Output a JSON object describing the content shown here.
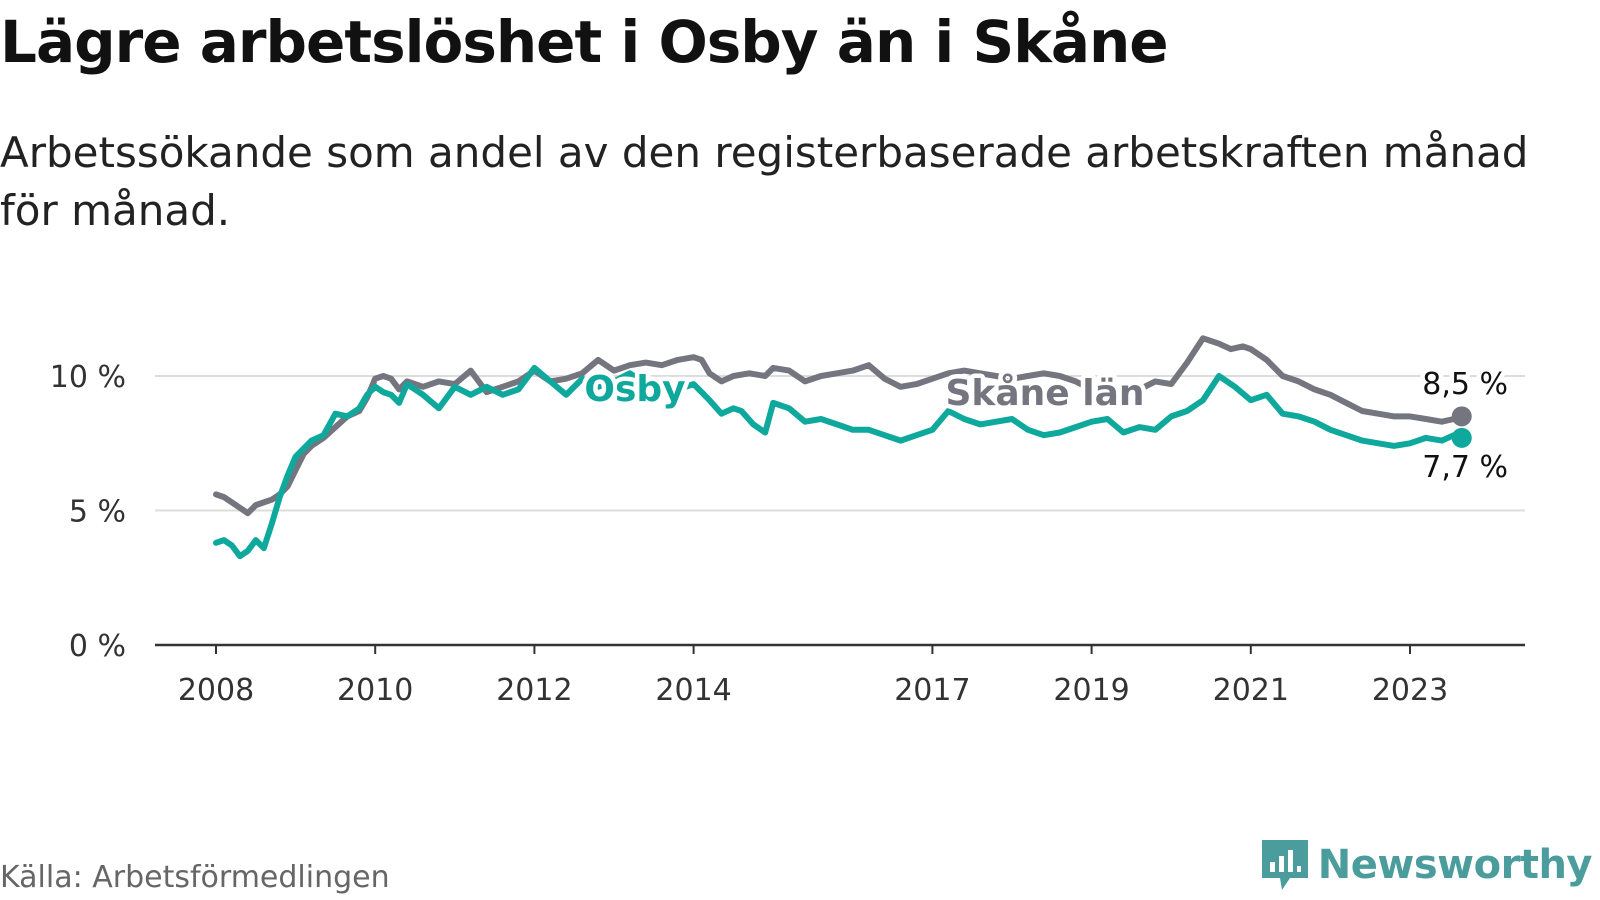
{
  "title": "Lägre arbetslöshet i Osby än i Skåne",
  "subtitle": "Arbetssökande som andel av den registerbaserade arbetskraften månad för månad.",
  "source": "Källa: Arbetsförmedlingen",
  "brand": "Newsworthy",
  "colors": {
    "osby": "#0fa89c",
    "skane": "#75757f",
    "grid": "#dddddd",
    "axis": "#333333",
    "brand": "#4a9d9c"
  },
  "chart_data": {
    "type": "line",
    "title": "Lägre arbetslöshet i Osby än i Skåne",
    "xlabel": "",
    "ylabel": "",
    "ylim": [
      0,
      10
    ],
    "xlim": [
      2007.5,
      2024.2
    ],
    "grid": true,
    "yticks": [
      {
        "value": 0,
        "label": "0 %"
      },
      {
        "value": 5,
        "label": "5 %"
      },
      {
        "value": 10,
        "label": "10 %"
      }
    ],
    "xticks": [
      {
        "value": 2008,
        "label": "2008"
      },
      {
        "value": 2010,
        "label": "2010"
      },
      {
        "value": 2012,
        "label": "2012"
      },
      {
        "value": 2014,
        "label": "2014"
      },
      {
        "value": 2017,
        "label": "2017"
      },
      {
        "value": 2019,
        "label": "2019"
      },
      {
        "value": 2021,
        "label": "2021"
      },
      {
        "value": 2023,
        "label": "2023"
      }
    ],
    "series": [
      {
        "name": "Skåne län",
        "color": "#75757f",
        "x": [
          2008.0,
          2008.1,
          2008.2,
          2008.3,
          2008.4,
          2008.5,
          2008.6,
          2008.7,
          2008.8,
          2008.9,
          2009.0,
          2009.1,
          2009.2,
          2009.35,
          2009.5,
          2009.65,
          2009.8,
          2009.9,
          2010.0,
          2010.1,
          2010.2,
          2010.3,
          2010.4,
          2010.6,
          2010.8,
          2011.0,
          2011.2,
          2011.4,
          2011.6,
          2011.8,
          2012.0,
          2012.2,
          2012.4,
          2012.6,
          2012.8,
          2013.0,
          2013.2,
          2013.4,
          2013.6,
          2013.8,
          2014.0,
          2014.1,
          2014.2,
          2014.35,
          2014.5,
          2014.7,
          2014.9,
          2015.0,
          2015.2,
          2015.4,
          2015.6,
          2015.8,
          2016.0,
          2016.2,
          2016.4,
          2016.6,
          2016.8,
          2017.0,
          2017.2,
          2017.4,
          2017.6,
          2017.8,
          2018.0,
          2018.2,
          2018.4,
          2018.6,
          2018.8,
          2019.0,
          2019.2,
          2019.4,
          2019.6,
          2019.8,
          2020.0,
          2020.2,
          2020.4,
          2020.6,
          2020.75,
          2020.9,
          2021.0,
          2021.2,
          2021.4,
          2021.6,
          2021.8,
          2022.0,
          2022.2,
          2022.4,
          2022.6,
          2022.8,
          2023.0,
          2023.2,
          2023.4,
          2023.55,
          2023.65
        ],
        "values": [
          5.6,
          5.5,
          5.3,
          5.1,
          4.9,
          5.2,
          5.3,
          5.4,
          5.6,
          5.9,
          6.5,
          7.1,
          7.4,
          7.7,
          8.1,
          8.5,
          8.7,
          9.2,
          9.9,
          10.0,
          9.9,
          9.5,
          9.8,
          9.6,
          9.8,
          9.7,
          10.2,
          9.4,
          9.6,
          9.8,
          10.2,
          9.8,
          9.9,
          10.1,
          10.6,
          10.2,
          10.4,
          10.5,
          10.4,
          10.6,
          10.7,
          10.6,
          10.1,
          9.8,
          10.0,
          10.1,
          10.0,
          10.3,
          10.2,
          9.8,
          10.0,
          10.1,
          10.2,
          10.4,
          9.9,
          9.6,
          9.7,
          9.9,
          10.1,
          10.2,
          10.1,
          10.0,
          9.9,
          10.0,
          10.1,
          10.0,
          9.8,
          9.5,
          9.6,
          9.4,
          9.5,
          9.8,
          9.7,
          10.5,
          11.4,
          11.2,
          11.0,
          11.1,
          11.0,
          10.6,
          10.0,
          9.8,
          9.5,
          9.3,
          9.0,
          8.7,
          8.6,
          8.5,
          8.5,
          8.4,
          8.3,
          8.4,
          8.5
        ]
      },
      {
        "name": "Osby",
        "color": "#0fa89c",
        "x": [
          2008.0,
          2008.1,
          2008.2,
          2008.3,
          2008.4,
          2008.5,
          2008.6,
          2008.7,
          2008.8,
          2008.9,
          2009.0,
          2009.1,
          2009.2,
          2009.35,
          2009.5,
          2009.65,
          2009.8,
          2009.9,
          2010.0,
          2010.1,
          2010.2,
          2010.3,
          2010.4,
          2010.6,
          2010.8,
          2011.0,
          2011.2,
          2011.4,
          2011.6,
          2011.8,
          2012.0,
          2012.2,
          2012.4,
          2012.6,
          2012.8,
          2013.0,
          2013.2,
          2013.4,
          2013.6,
          2013.8,
          2014.0,
          2014.1,
          2014.2,
          2014.35,
          2014.5,
          2014.6,
          2014.75,
          2014.9,
          2015.0,
          2015.2,
          2015.4,
          2015.6,
          2015.8,
          2016.0,
          2016.2,
          2016.4,
          2016.6,
          2016.8,
          2017.0,
          2017.2,
          2017.4,
          2017.6,
          2017.8,
          2018.0,
          2018.2,
          2018.4,
          2018.6,
          2018.8,
          2019.0,
          2019.2,
          2019.4,
          2019.6,
          2019.8,
          2020.0,
          2020.2,
          2020.4,
          2020.6,
          2020.8,
          2021.0,
          2021.2,
          2021.4,
          2021.6,
          2021.8,
          2022.0,
          2022.2,
          2022.4,
          2022.6,
          2022.8,
          2023.0,
          2023.2,
          2023.4,
          2023.55,
          2023.65
        ],
        "values": [
          3.8,
          3.9,
          3.7,
          3.3,
          3.5,
          3.9,
          3.6,
          4.5,
          5.5,
          6.3,
          7.0,
          7.3,
          7.6,
          7.8,
          8.6,
          8.5,
          8.8,
          9.3,
          9.6,
          9.4,
          9.3,
          9.0,
          9.7,
          9.3,
          8.8,
          9.6,
          9.3,
          9.6,
          9.3,
          9.5,
          10.3,
          9.8,
          9.3,
          9.9,
          9.6,
          9.8,
          10.1,
          9.7,
          9.8,
          9.5,
          9.7,
          9.4,
          9.1,
          8.6,
          8.8,
          8.7,
          8.2,
          7.9,
          9.0,
          8.8,
          8.3,
          8.4,
          8.2,
          8.0,
          8.0,
          7.8,
          7.6,
          7.8,
          8.0,
          8.7,
          8.4,
          8.2,
          8.3,
          8.4,
          8.0,
          7.8,
          7.9,
          8.1,
          8.3,
          8.4,
          7.9,
          8.1,
          8.0,
          8.5,
          8.7,
          9.1,
          10.0,
          9.6,
          9.1,
          9.3,
          8.6,
          8.5,
          8.3,
          8.0,
          7.8,
          7.6,
          7.5,
          7.4,
          7.5,
          7.7,
          7.6,
          7.8,
          7.7
        ]
      }
    ],
    "annotations": [
      {
        "text": "Osby",
        "series": "Osby"
      },
      {
        "text": "Skåne län",
        "series": "Skåne län"
      },
      {
        "text": "8,5 %",
        "series": "Skåne län"
      },
      {
        "text": "7,7 %",
        "series": "Osby"
      }
    ]
  }
}
